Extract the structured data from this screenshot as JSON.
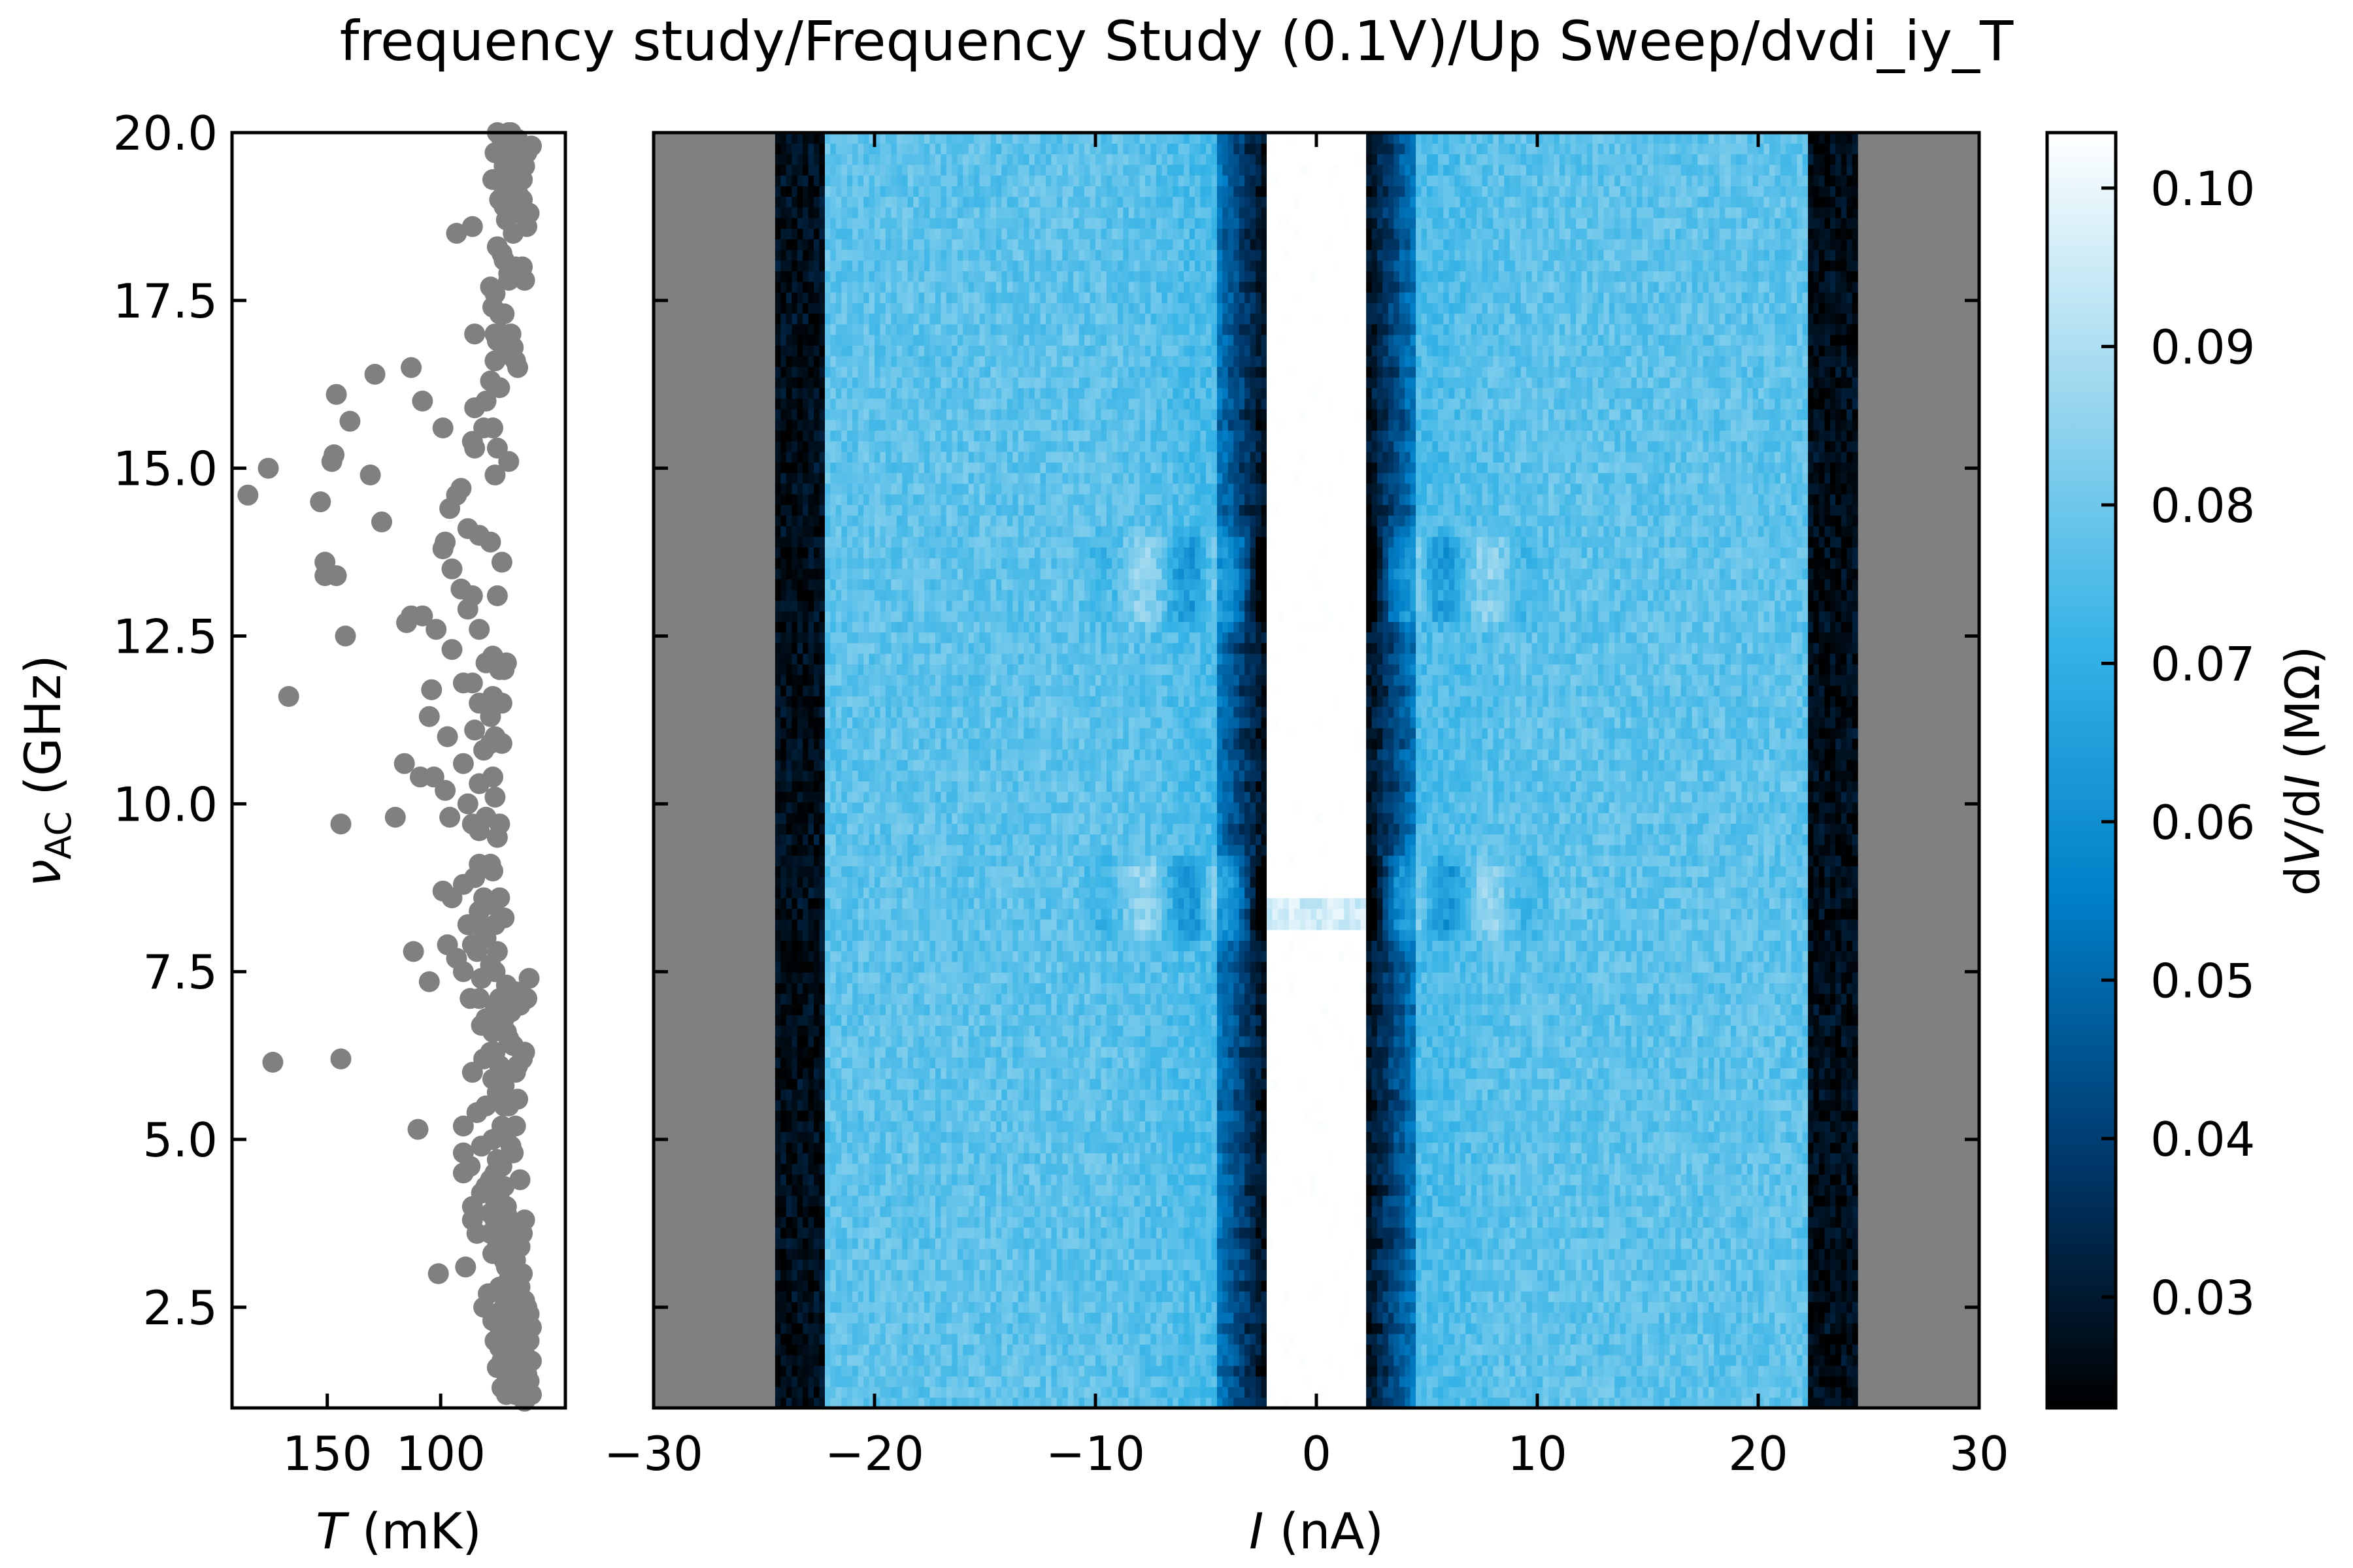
{
  "figure": {
    "title": "frequency study/Frequency Study (0.1V)/Up Sweep/dvdi_iy_T"
  },
  "chart_data": [
    {
      "type": "scatter",
      "name": "temperature-panel",
      "xlabel_var": "T",
      "xlabel_unit": " (mK)",
      "ylabel_var": "ν",
      "ylabel_sub": "AC",
      "ylabel_unit": " (GHz)",
      "xlim": [
        192,
        45
      ],
      "ylim": [
        1,
        20
      ],
      "xticks": [
        150,
        100
      ],
      "yticks": [
        2.5,
        5.0,
        7.5,
        10.0,
        12.5,
        15.0,
        17.5,
        20.0
      ],
      "marker_color": "#808080",
      "points": [
        [
          185,
          14.6
        ],
        [
          176,
          15.0
        ],
        [
          174,
          6.15
        ],
        [
          167,
          11.6
        ],
        [
          153,
          14.5
        ],
        [
          151,
          13.6
        ],
        [
          151,
          13.4
        ],
        [
          148,
          15.1
        ],
        [
          147,
          15.2
        ],
        [
          146,
          16.1
        ],
        [
          146,
          13.4
        ],
        [
          144,
          9.7
        ],
        [
          144,
          6.2
        ],
        [
          142,
          12.5
        ],
        [
          140,
          15.7
        ],
        [
          131,
          14.9
        ],
        [
          129,
          16.4
        ],
        [
          126,
          14.2
        ],
        [
          120,
          9.8
        ],
        [
          116,
          10.6
        ],
        [
          115,
          12.7
        ],
        [
          113,
          16.5
        ],
        [
          113,
          12.8
        ],
        [
          112,
          7.8
        ],
        [
          110,
          5.15
        ],
        [
          109,
          10.4
        ],
        [
          108,
          16.0
        ],
        [
          108,
          12.8
        ],
        [
          105,
          7.35
        ],
        [
          105,
          11.3
        ],
        [
          104,
          11.7
        ],
        [
          103,
          10.4
        ],
        [
          102,
          12.6
        ],
        [
          101,
          3.0
        ],
        [
          99,
          15.6
        ],
        [
          99,
          13.8
        ],
        [
          99,
          8.7
        ],
        [
          98,
          13.9
        ],
        [
          98,
          10.2
        ],
        [
          97,
          11.0
        ],
        [
          97,
          7.9
        ],
        [
          96,
          14.4
        ],
        [
          96,
          9.8
        ],
        [
          95,
          13.5
        ],
        [
          95,
          12.3
        ],
        [
          95,
          8.6
        ],
        [
          93,
          14.6
        ],
        [
          93,
          18.5
        ],
        [
          93,
          7.7
        ],
        [
          91,
          14.7
        ],
        [
          91,
          13.2
        ],
        [
          90,
          11.8
        ],
        [
          90,
          10.6
        ],
        [
          90,
          8.8
        ],
        [
          90,
          7.5
        ],
        [
          90,
          5.2
        ],
        [
          90,
          4.8
        ],
        [
          90,
          4.5
        ],
        [
          89,
          3.1
        ],
        [
          88,
          14.1
        ],
        [
          88,
          12.9
        ],
        [
          88,
          10.0
        ],
        [
          88,
          8.2
        ],
        [
          87,
          7.1
        ],
        [
          87,
          4.6
        ],
        [
          86,
          15.4
        ],
        [
          86,
          18.6
        ],
        [
          86,
          13.1
        ],
        [
          86,
          11.8
        ],
        [
          86,
          9.7
        ],
        [
          86,
          7.9
        ],
        [
          86,
          6.0
        ],
        [
          86,
          4.0
        ],
        [
          86,
          3.8
        ],
        [
          85,
          17.0
        ],
        [
          85,
          15.9
        ],
        [
          85,
          15.3
        ],
        [
          85,
          11.1
        ],
        [
          85,
          8.9
        ],
        [
          84,
          8.2
        ],
        [
          84,
          7.8
        ],
        [
          84,
          5.4
        ],
        [
          84,
          3.6
        ],
        [
          83,
          14.0
        ],
        [
          83,
          12.6
        ],
        [
          83,
          11.5
        ],
        [
          83,
          10.3
        ],
        [
          83,
          9.6
        ],
        [
          83,
          9.1
        ],
        [
          83,
          8.4
        ],
        [
          83,
          7.1
        ],
        [
          82,
          7.4
        ],
        [
          82,
          6.7
        ],
        [
          82,
          4.9
        ],
        [
          82,
          4.2
        ],
        [
          81,
          15.6
        ],
        [
          81,
          10.8
        ],
        [
          81,
          8.6
        ],
        [
          81,
          6.2
        ],
        [
          81,
          2.5
        ],
        [
          80,
          16.0
        ],
        [
          80,
          12.1
        ],
        [
          80,
          9.8
        ],
        [
          80,
          8.0
        ],
        [
          80,
          6.8
        ],
        [
          80,
          5.5
        ],
        [
          80,
          4.3
        ],
        [
          79,
          2.7
        ],
        [
          78,
          17.7
        ],
        [
          78,
          16.3
        ],
        [
          78,
          13.9
        ],
        [
          78,
          11.3
        ],
        [
          78,
          10.9
        ],
        [
          78,
          9.1
        ],
        [
          78,
          8.5
        ],
        [
          78,
          7.6
        ],
        [
          78,
          6.3
        ],
        [
          78,
          4.4
        ],
        [
          78,
          3.9
        ],
        [
          78,
          3.6
        ],
        [
          77,
          19.3
        ],
        [
          77,
          17.4
        ],
        [
          77,
          15.6
        ],
        [
          77,
          12.2
        ],
        [
          77,
          11.6
        ],
        [
          77,
          10.4
        ],
        [
          77,
          9.0
        ],
        [
          77,
          6.6
        ],
        [
          77,
          5.9
        ],
        [
          77,
          5.0
        ],
        [
          77,
          3.3
        ],
        [
          77,
          2.4
        ],
        [
          77,
          2.3
        ],
        [
          76,
          19.7
        ],
        [
          76,
          17.6
        ],
        [
          76,
          17.0
        ],
        [
          76,
          16.6
        ],
        [
          76,
          14.9
        ],
        [
          76,
          12.1
        ],
        [
          76,
          11.0
        ],
        [
          76,
          10.1
        ],
        [
          76,
          8.2
        ],
        [
          76,
          7.5
        ],
        [
          76,
          7.0
        ],
        [
          76,
          6.3
        ],
        [
          76,
          4.5
        ],
        [
          76,
          4.1
        ],
        [
          76,
          3.8
        ],
        [
          76,
          2.0
        ],
        [
          75,
          20.0
        ],
        [
          75,
          18.3
        ],
        [
          75,
          16.9
        ],
        [
          75,
          15.3
        ],
        [
          75,
          13.1
        ],
        [
          75,
          9.5
        ],
        [
          75,
          7.8
        ],
        [
          75,
          5.7
        ],
        [
          75,
          4.7
        ],
        [
          75,
          3.4
        ],
        [
          75,
          1.6
        ],
        [
          74,
          19.0
        ],
        [
          74,
          17.3
        ],
        [
          74,
          16.2
        ],
        [
          74,
          12.0
        ],
        [
          74,
          9.7
        ],
        [
          74,
          8.6
        ],
        [
          74,
          7.1
        ],
        [
          74,
          6.1
        ],
        [
          74,
          4.1
        ],
        [
          74,
          3.7
        ],
        [
          74,
          2.8
        ],
        [
          74,
          2.2
        ],
        [
          74,
          1.9
        ],
        [
          73,
          19.9
        ],
        [
          73,
          18.2
        ],
        [
          73,
          17.0
        ],
        [
          73,
          13.6
        ],
        [
          73,
          11.5
        ],
        [
          73,
          10.9
        ],
        [
          73,
          7.0
        ],
        [
          73,
          5.9
        ],
        [
          73,
          5.2
        ],
        [
          73,
          4.6
        ],
        [
          73,
          3.4
        ],
        [
          73,
          2.7
        ],
        [
          73,
          1.7
        ],
        [
          73,
          1.3
        ],
        [
          72,
          19.6
        ],
        [
          72,
          19.5
        ],
        [
          72,
          19.1
        ],
        [
          72,
          18.9
        ],
        [
          72,
          18.1
        ],
        [
          72,
          17.3
        ],
        [
          72,
          16.7
        ],
        [
          72,
          12.0
        ],
        [
          72,
          8.3
        ],
        [
          72,
          6.8
        ],
        [
          72,
          5.8
        ],
        [
          72,
          5.5
        ],
        [
          72,
          4.3
        ],
        [
          72,
          3.2
        ],
        [
          72,
          2.5
        ],
        [
          72,
          1.8
        ],
        [
          71,
          19.8
        ],
        [
          71,
          19.4
        ],
        [
          71,
          18.7
        ],
        [
          71,
          16.8
        ],
        [
          71,
          12.1
        ],
        [
          71,
          7.3
        ],
        [
          71,
          6.6
        ],
        [
          71,
          5.1
        ],
        [
          71,
          4.0
        ],
        [
          71,
          3.9
        ],
        [
          71,
          3.1
        ],
        [
          71,
          2.4
        ],
        [
          71,
          2.1
        ],
        [
          71,
          1.5
        ],
        [
          71,
          1.2
        ],
        [
          70,
          20.0
        ],
        [
          70,
          19.7
        ],
        [
          70,
          19.0
        ],
        [
          70,
          17.9
        ],
        [
          70,
          17.8
        ],
        [
          70,
          15.1
        ],
        [
          70,
          6.5
        ],
        [
          70,
          5.5
        ],
        [
          70,
          2.9
        ],
        [
          70,
          2.1
        ],
        [
          70,
          1.6
        ],
        [
          70,
          1.4
        ],
        [
          69,
          20.0
        ],
        [
          69,
          19.2
        ],
        [
          69,
          18.8
        ],
        [
          69,
          17.0
        ],
        [
          69,
          6.9
        ],
        [
          69,
          4.9
        ],
        [
          69,
          3.3
        ],
        [
          69,
          2.7
        ],
        [
          69,
          2.2
        ],
        [
          69,
          1.9
        ],
        [
          69,
          1.4
        ],
        [
          68,
          19.5
        ],
        [
          68,
          19.0
        ],
        [
          68,
          18.5
        ],
        [
          68,
          16.8
        ],
        [
          68,
          7.2
        ],
        [
          68,
          6.4
        ],
        [
          68,
          4.8
        ],
        [
          68,
          3.5
        ],
        [
          68,
          2.6
        ],
        [
          68,
          2.3
        ],
        [
          68,
          1.8
        ],
        [
          68,
          1.3
        ],
        [
          67,
          19.6
        ],
        [
          67,
          18.9
        ],
        [
          67,
          18.0
        ],
        [
          67,
          16.6
        ],
        [
          67,
          7.2
        ],
        [
          67,
          6.0
        ],
        [
          67,
          5.2
        ],
        [
          67,
          3.2
        ],
        [
          67,
          2.9
        ],
        [
          67,
          2.0
        ],
        [
          67,
          1.7
        ],
        [
          67,
          1.2
        ],
        [
          66,
          19.9
        ],
        [
          66,
          19.1
        ],
        [
          66,
          16.5
        ],
        [
          66,
          6.1
        ],
        [
          66,
          5.6
        ],
        [
          66,
          3.7
        ],
        [
          66,
          3.0
        ],
        [
          66,
          2.6
        ],
        [
          66,
          2.2
        ],
        [
          66,
          1.6
        ],
        [
          66,
          1.3
        ],
        [
          65,
          19.7
        ],
        [
          65,
          18.8
        ],
        [
          65,
          17.9
        ],
        [
          65,
          7.0
        ],
        [
          65,
          4.4
        ],
        [
          65,
          3.4
        ],
        [
          65,
          2.8
        ],
        [
          65,
          2.4
        ],
        [
          65,
          2.0
        ],
        [
          65,
          1.7
        ],
        [
          65,
          1.3
        ],
        [
          64,
          19.3
        ],
        [
          64,
          19.0
        ],
        [
          64,
          18.0
        ],
        [
          64,
          6.2
        ],
        [
          64,
          3.6
        ],
        [
          64,
          3.0
        ],
        [
          64,
          2.6
        ],
        [
          64,
          2.2
        ],
        [
          64,
          1.5
        ],
        [
          64,
          1.4
        ],
        [
          64,
          1.2
        ],
        [
          63,
          19.5
        ],
        [
          63,
          17.8
        ],
        [
          63,
          6.3
        ],
        [
          63,
          3.8
        ],
        [
          63,
          2.6
        ],
        [
          63,
          1.8
        ],
        [
          63,
          1.6
        ],
        [
          63,
          1.1
        ],
        [
          62,
          19.7
        ],
        [
          62,
          18.6
        ],
        [
          62,
          7.1
        ],
        [
          62,
          2.5
        ],
        [
          62,
          2.1
        ],
        [
          62,
          1.5
        ],
        [
          62,
          1.3
        ],
        [
          61,
          18.8
        ],
        [
          61,
          7.4
        ],
        [
          61,
          2.4
        ],
        [
          61,
          2.0
        ],
        [
          61,
          1.4
        ],
        [
          60,
          19.8
        ],
        [
          60,
          2.2
        ],
        [
          60,
          1.7
        ],
        [
          60,
          1.2
        ]
      ]
    },
    {
      "type": "heatmap",
      "name": "dvdi-map",
      "xlabel_var": "I",
      "xlabel_unit": " (nA)",
      "xlim": [
        -30,
        30
      ],
      "ylim": [
        1,
        20
      ],
      "xticks": [
        -30,
        -20,
        -10,
        0,
        10,
        20,
        30
      ],
      "xtick_labels": [
        "−30",
        "−20",
        "−10",
        "0",
        "10",
        "20",
        "30"
      ],
      "data_range_I": [
        -30,
        30
      ],
      "measured_range_I": [
        -24.5,
        24.5
      ],
      "background_color": "#808080",
      "gap_half_width": 2.2,
      "valley_half_width": 4.5,
      "edge_dark_I": 23.5,
      "resonance_freqs": [
        8.2,
        8.6,
        9.0,
        12.9,
        13.4,
        13.8
      ],
      "colormap": [
        "#000000",
        "#003a6e",
        "#007fc8",
        "#36b3e6",
        "#9ed8ef",
        "#ffffff"
      ]
    },
    {
      "type": "colorbar",
      "name": "colorbar",
      "label_pre": "d",
      "label_var1": "V",
      "label_mid": "/d",
      "label_var2": "I",
      "label_unit": " (MΩ)",
      "vmin": 0.023,
      "vmax": 0.1035,
      "ticks": [
        0.03,
        0.04,
        0.05,
        0.06,
        0.07,
        0.08,
        0.09,
        0.1
      ],
      "tick_labels": [
        "0.03",
        "0.04",
        "0.05",
        "0.06",
        "0.07",
        "0.08",
        "0.09",
        "0.10"
      ]
    }
  ]
}
